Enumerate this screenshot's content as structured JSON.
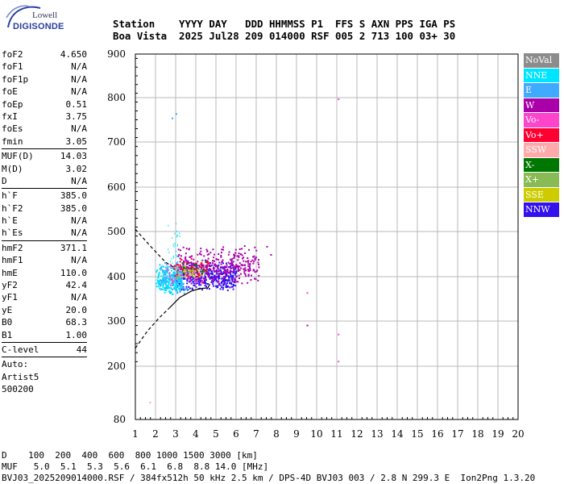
{
  "logo": {
    "line1": "Lowell",
    "line2": "DIGISONDE"
  },
  "header": {
    "line1": "Station    YYYY DAY   DDD HHMMSS P1  FFS S AXN PPS IGA PS",
    "line2": "Boa Vista  2025 Jul28 209 014000 RSF 005 2 713 100 03+ 30"
  },
  "params": [
    {
      "k": "foF2",
      "v": "4.650"
    },
    {
      "k": "foF1",
      "v": "N/A"
    },
    {
      "k": "foF1p",
      "v": "N/A"
    },
    {
      "k": "foE",
      "v": "N/A"
    },
    {
      "k": "foEp",
      "v": "0.51"
    },
    {
      "k": "fxI",
      "v": "3.75"
    },
    {
      "k": "foEs",
      "v": "N/A"
    },
    {
      "k": "fmin",
      "v": "3.05"
    },
    {
      "sep": true
    },
    {
      "k": "MUF(D)",
      "v": "14.03"
    },
    {
      "k": "M(D)",
      "v": "3.02"
    },
    {
      "k": "D",
      "v": "N/A"
    },
    {
      "sep": true
    },
    {
      "k": "h`F",
      "v": "385.0"
    },
    {
      "k": "h`F2",
      "v": "385.0"
    },
    {
      "k": "h`E",
      "v": "N/A"
    },
    {
      "k": "h`Es",
      "v": "N/A"
    },
    {
      "sep": true
    },
    {
      "k": "hmF2",
      "v": "371.1"
    },
    {
      "k": "hmF1",
      "v": "N/A"
    },
    {
      "k": "hmE",
      "v": "110.0"
    },
    {
      "k": "yF2",
      "v": "42.4"
    },
    {
      "k": "yF1",
      "v": "N/A"
    },
    {
      "k": "yE",
      "v": "20.0"
    },
    {
      "k": "B0",
      "v": "68.3"
    },
    {
      "k": "B1",
      "v": "1.00"
    },
    {
      "sep": true
    },
    {
      "k": "C-level",
      "v": "44"
    },
    {
      "sep": true
    },
    {
      "free": "Auto:"
    },
    {
      "free": "Artist5"
    },
    {
      "free": "500200"
    }
  ],
  "legend": [
    {
      "label": "NoVal",
      "color": "#8c8c8c"
    },
    {
      "label": "NNE",
      "color": "#00e5ff"
    },
    {
      "label": "E",
      "color": "#40aaff"
    },
    {
      "label": "W",
      "color": "#aa00aa"
    },
    {
      "label": "Vo-",
      "color": "#ff44cc"
    },
    {
      "label": "Vo+",
      "color": "#ff0033"
    },
    {
      "label": "SSW",
      "color": "#ffaaaa"
    },
    {
      "label": "X-",
      "color": "#007700"
    },
    {
      "label": "X+",
      "color": "#88bb55"
    },
    {
      "label": "SSE",
      "color": "#cccc00"
    },
    {
      "label": "NNW",
      "color": "#3311ee"
    }
  ],
  "footer": {
    "line1": "D    100  200  400  600  800 1000 1500 3000 [km]",
    "line2": "MUF   5.0  5.1  5.3  5.6  6.1  6.8  8.8 14.0 [MHz]",
    "line3": "BVJ03_2025209014000.RSF / 384fx512h 50 kHz 2.5 km / DPS-4D BVJ03 003 / 2.8 N 299.3 E  Ion2Png 1.3.20"
  },
  "chart_data": {
    "type": "scatter",
    "xlim": [
      1,
      20
    ],
    "ylim": [
      80,
      900
    ],
    "x_ticks": [
      1,
      2,
      3,
      4,
      5,
      6,
      7,
      8,
      9,
      10,
      11,
      12,
      13,
      14,
      15,
      16,
      17,
      18,
      19,
      20
    ],
    "y_ticks": [
      80,
      200,
      300,
      400,
      500,
      600,
      700,
      800,
      900
    ],
    "y_scale": "nonlinear (ionogram virtual height)",
    "grid": true,
    "clusters": [
      {
        "series": "NNE",
        "x_range": [
          2.0,
          3.3
        ],
        "y_range": [
          360,
          430
        ],
        "count": 220
      },
      {
        "series": "NNE",
        "x_range": [
          2.6,
          3.2
        ],
        "y_range": [
          420,
          530
        ],
        "count": 30
      },
      {
        "series": "E",
        "x_range": [
          2.2,
          3.6
        ],
        "y_range": [
          360,
          440
        ],
        "count": 90
      },
      {
        "series": "NNW",
        "x_range": [
          3.0,
          6.0
        ],
        "y_range": [
          370,
          440
        ],
        "count": 420
      },
      {
        "series": "W",
        "x_range": [
          3.0,
          7.1
        ],
        "y_range": [
          385,
          475
        ],
        "count": 340
      },
      {
        "series": "Vo+",
        "x_range": [
          2.8,
          4.6
        ],
        "y_range": [
          400,
          445
        ],
        "count": 60
      },
      {
        "series": "Vo-",
        "x_range": [
          2.5,
          4.5
        ],
        "y_range": [
          380,
          440
        ],
        "count": 40
      },
      {
        "series": "X-",
        "x_range": [
          3.0,
          4.5
        ],
        "y_range": [
          395,
          440
        ],
        "count": 25
      },
      {
        "series": "X+",
        "x_range": [
          3.0,
          4.5
        ],
        "y_range": [
          395,
          440
        ],
        "count": 20
      },
      {
        "series": "SSE",
        "x_range": [
          3.0,
          4.2
        ],
        "y_range": [
          395,
          435
        ],
        "count": 15
      },
      {
        "series": "SSW",
        "x_range": [
          3.0,
          4.2
        ],
        "y_range": [
          395,
          435
        ],
        "count": 15
      }
    ],
    "isolated_points": [
      {
        "series": "Vo-",
        "x": 11.05,
        "y": 798
      },
      {
        "series": "Vo-",
        "x": 9.5,
        "y": 365
      },
      {
        "series": "W",
        "x": 9.5,
        "y": 292
      },
      {
        "series": "Vo-",
        "x": 11.05,
        "y": 272
      },
      {
        "series": "Vo-",
        "x": 11.05,
        "y": 212
      },
      {
        "series": "SSW",
        "x": 1.7,
        "y": 120
      },
      {
        "series": "E",
        "x": 2.8,
        "y": 755
      },
      {
        "series": "E",
        "x": 3.0,
        "y": 765
      },
      {
        "series": "W",
        "x": 7.5,
        "y": 468
      },
      {
        "series": "W",
        "x": 7.7,
        "y": 450
      }
    ],
    "curves": [
      {
        "name": "profile-upper",
        "style": "dashed",
        "points": [
          [
            1.0,
            505
          ],
          [
            1.8,
            465
          ],
          [
            2.5,
            432
          ],
          [
            3.0,
            418
          ]
        ]
      },
      {
        "name": "profile-lower",
        "style": "dashed",
        "points": [
          [
            1.0,
            240
          ],
          [
            1.6,
            278
          ],
          [
            2.2,
            308
          ],
          [
            2.7,
            330
          ]
        ]
      },
      {
        "name": "profile-solid",
        "style": "solid",
        "points": [
          [
            2.7,
            330
          ],
          [
            3.2,
            353
          ],
          [
            3.8,
            368
          ],
          [
            4.2,
            373
          ],
          [
            4.6,
            375
          ],
          [
            4.7,
            383
          ]
        ]
      }
    ]
  }
}
